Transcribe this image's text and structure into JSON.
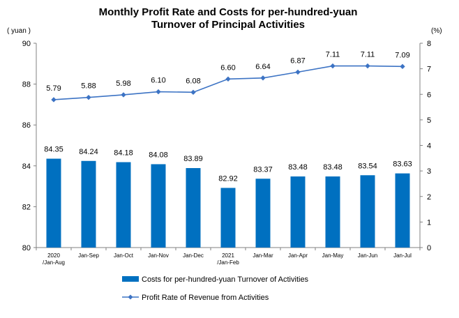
{
  "chart_data": {
    "type": "bar",
    "title_lines": [
      "Monthly Profit Rate and Costs for per-hundred-yuan",
      "Turnover of Principal Activities"
    ],
    "y_left_unit": "( yuan )",
    "y_right_unit": "(%)",
    "y_left_range": [
      80,
      90
    ],
    "y_left_ticks": [
      "80",
      "82",
      "84",
      "86",
      "88",
      "90"
    ],
    "y_right_range": [
      0,
      8
    ],
    "y_right_ticks": [
      "0",
      "1",
      "2",
      "3",
      "4",
      "5",
      "6",
      "7",
      "8"
    ],
    "categories": [
      [
        "2020",
        "/Jan-Aug"
      ],
      [
        "Jan-Sep"
      ],
      [
        "Jan-Oct"
      ],
      [
        "Jan-Nov"
      ],
      [
        "Jan-Dec"
      ],
      [
        "2021",
        "/Jan-Feb"
      ],
      [
        "Jan-Mar"
      ],
      [
        "Jan-Apr"
      ],
      [
        "Jan-May"
      ],
      [
        "Jan-Jun"
      ],
      [
        "Jan-Jul"
      ]
    ],
    "series": [
      {
        "name": "Costs for per-hundred-yuan Turnover of  Activities",
        "type": "bar",
        "axis": "left",
        "values": [
          84.35,
          84.24,
          84.18,
          84.08,
          83.89,
          82.92,
          83.37,
          83.48,
          83.48,
          83.54,
          83.63
        ],
        "labels": [
          "84.35",
          "84.24",
          "84.18",
          "84.08",
          "83.89",
          "82.92",
          "83.37",
          "83.48",
          "83.48",
          "83.54",
          "83.63"
        ]
      },
      {
        "name": "Profit Rate of Revenue from Activities",
        "type": "line",
        "axis": "right",
        "values": [
          5.79,
          5.88,
          5.98,
          6.1,
          6.08,
          6.6,
          6.64,
          6.87,
          7.11,
          7.11,
          7.09
        ],
        "labels": [
          "5.79",
          "5.88",
          "5.98",
          "6.10",
          "6.08",
          "6.60",
          "6.64",
          "6.87",
          "7.11",
          "7.11",
          "7.09"
        ]
      }
    ],
    "grid": false,
    "legend_position": "bottom",
    "colors": {
      "bar": "#0070C0",
      "line": "#3C73C4",
      "axis": "#808080"
    }
  }
}
